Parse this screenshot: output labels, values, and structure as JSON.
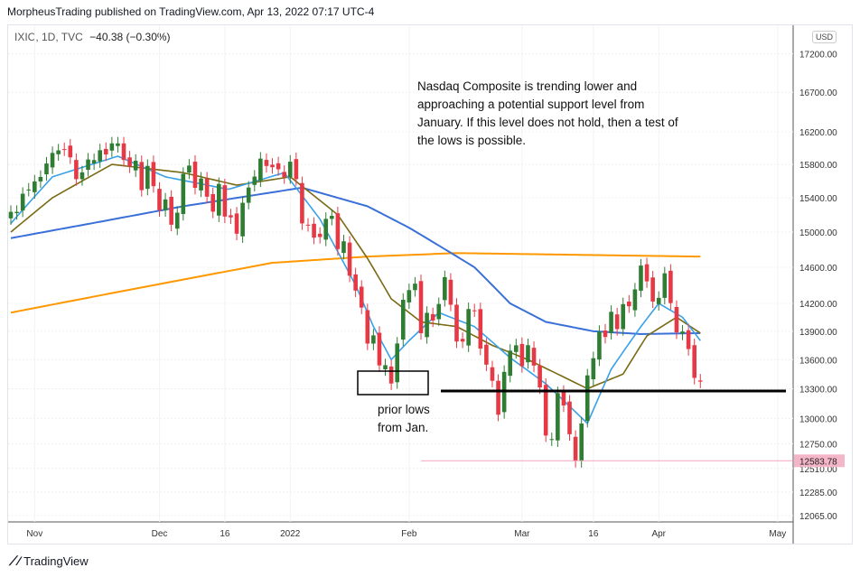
{
  "header": {
    "published": "MorpheusTrading published on TradingView.com, Apr 13, 2022 07:17 UTC-4",
    "symbol": "IXIC, 1D, TVC",
    "change": "−40.38 (−0.30%)",
    "currency": "USD"
  },
  "footer": {
    "brand": "TradingView"
  },
  "annotations": {
    "main": "Nasdaq Composite is trending lower and approaching a potential support level from January.  If this level does not hold, then a test of the lows is possible.",
    "lows_1": "prior lows",
    "lows_2": "from Jan.",
    "price_tag": "12583.78"
  },
  "chart_data": {
    "type": "candlestick",
    "scale": "log",
    "yticks": [
      17200,
      16700,
      16200,
      15800,
      15400,
      15000,
      14600,
      14200,
      13900,
      13600,
      13300,
      13000,
      12750,
      12510,
      12285,
      12065
    ],
    "ytick_labels": [
      "17200.00",
      "16700.00",
      "16200.00",
      "15800.00",
      "15400.00",
      "15000.00",
      "14600.00",
      "14200.00",
      "13900.00",
      "13600.00",
      "13300.00",
      "13000.00",
      "12750.00",
      "12510.00",
      "12285.00",
      "12065.00"
    ],
    "xticks": [
      {
        "label": "Nov",
        "i": 4
      },
      {
        "label": "Dec",
        "i": 25
      },
      {
        "label": "16",
        "i": 36
      },
      {
        "label": "2022",
        "i": 47
      },
      {
        "label": "Feb",
        "i": 67
      },
      {
        "label": "Mar",
        "i": 86
      },
      {
        "label": "16",
        "i": 98
      },
      {
        "label": "Apr",
        "i": 109
      },
      {
        "label": "May",
        "i": 129
      }
    ],
    "closes": [
      15235,
      15235,
      15448,
      15498,
      15595,
      15649,
      15811,
      15940,
      15971,
      15982,
      15886,
      15622,
      15704,
      15860,
      15853,
      15973,
      15921,
      16057,
      16057,
      15854,
      15775,
      15845,
      15491,
      15782,
      15538,
      15254,
      15381,
      15085,
      15225,
      15686,
      15786,
      15518,
      15630,
      15413,
      15237,
      15565,
      15180,
      15170,
      14981,
      15341,
      15522,
      15653,
      15871,
      15781,
      15766,
      15741,
      15645,
      15833,
      15622,
      15100,
      15081,
      14936,
      14943,
      15153,
      15188,
      14806,
      14894,
      14506,
      14341,
      14155,
      13769,
      13856,
      13540,
      13542,
      13353,
      13770,
      14240,
      14346,
      14417,
      13879,
      14098,
      14015,
      14194,
      14490,
      14186,
      13791,
      13790,
      14139,
      14124,
      13716,
      13548,
      13381,
      13037,
      13473,
      13694,
      13751,
      13532,
      13752,
      13538,
      13313,
      12830,
      12795,
      13255,
      13130,
      12843,
      12581,
      12949,
      13437,
      13615,
      13894,
      13839,
      14109,
      13923,
      14192,
      14169,
      14354,
      14619,
      14443,
      14221,
      14261,
      14532,
      14204,
      13888,
      13897,
      13711,
      13411,
      13372
    ],
    "series": [
      {
        "name": "MA200",
        "color": "#ff9800",
        "knots": [
          [
            0,
            14100
          ],
          [
            44,
            14650
          ],
          [
            60,
            14720
          ],
          [
            75,
            14760
          ],
          [
            116,
            14720
          ]
        ]
      },
      {
        "name": "MA50",
        "color": "#3a70d8",
        "knots": [
          [
            0,
            14930
          ],
          [
            13.5,
            15100
          ],
          [
            29,
            15300
          ],
          [
            49,
            15520
          ],
          [
            60,
            15300
          ],
          [
            67,
            15050
          ],
          [
            78,
            14600
          ],
          [
            84,
            14200
          ],
          [
            90,
            14000
          ],
          [
            98,
            13900
          ],
          [
            106,
            13870
          ],
          [
            116,
            13880
          ]
        ]
      },
      {
        "name": "MA20",
        "color": "#7a6a14",
        "knots": [
          [
            0,
            15000
          ],
          [
            7,
            15400
          ],
          [
            17,
            15800
          ],
          [
            29,
            15700
          ],
          [
            38,
            15550
          ],
          [
            47,
            15650
          ],
          [
            55,
            15200
          ],
          [
            60,
            14700
          ],
          [
            64,
            14250
          ],
          [
            69,
            14000
          ],
          [
            75,
            13950
          ],
          [
            81,
            13750
          ],
          [
            87,
            13600
          ],
          [
            92,
            13450
          ],
          [
            97,
            13300
          ],
          [
            103,
            13450
          ],
          [
            107,
            13850
          ],
          [
            112,
            14050
          ],
          [
            116,
            13880
          ]
        ]
      },
      {
        "name": "MA10",
        "color": "#3aa0e8",
        "knots": [
          [
            0,
            15100
          ],
          [
            7,
            15650
          ],
          [
            18,
            15900
          ],
          [
            26,
            15650
          ],
          [
            36.6,
            15500
          ],
          [
            46,
            15700
          ],
          [
            52,
            15150
          ],
          [
            58,
            14400
          ],
          [
            61,
            13950
          ],
          [
            64,
            13600
          ],
          [
            67,
            13800
          ],
          [
            72,
            14100
          ],
          [
            78,
            13950
          ],
          [
            84,
            13620
          ],
          [
            90,
            13350
          ],
          [
            97,
            12950
          ],
          [
            101,
            13500
          ],
          [
            106,
            13950
          ],
          [
            109,
            14200
          ],
          [
            113,
            14050
          ],
          [
            116,
            13800
          ]
        ]
      }
    ],
    "support_level": 13260,
    "low_level": 12583.78,
    "up_color": "#2e7d32",
    "down_color": "#e53945"
  }
}
